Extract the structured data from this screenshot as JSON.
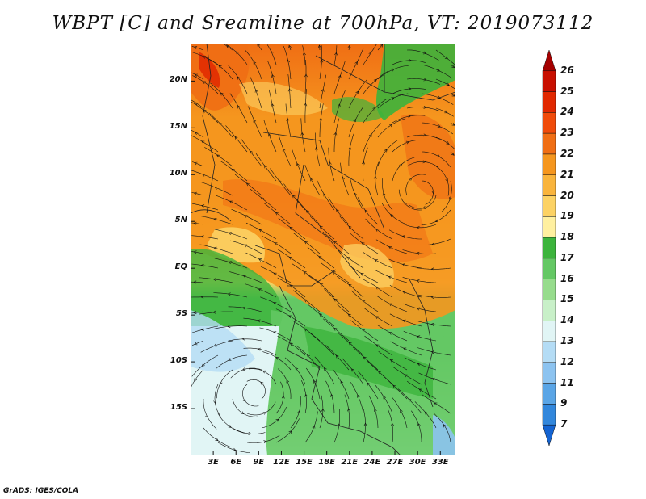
{
  "title": "WBPT [C] and Sreamline at 700hPa, VT: 2019073112",
  "footer": "GrADS: IGES/COLA",
  "map": {
    "lon_range": [
      0,
      35
    ],
    "lat_range": [
      -20,
      24
    ],
    "lat_ticks": [
      {
        "value": 20,
        "label": "20N"
      },
      {
        "value": 15,
        "label": "15N"
      },
      {
        "value": 10,
        "label": "10N"
      },
      {
        "value": 5,
        "label": "5N"
      },
      {
        "value": 0,
        "label": "EQ"
      },
      {
        "value": -5,
        "label": "5S"
      },
      {
        "value": -10,
        "label": "10S"
      },
      {
        "value": -15,
        "label": "15S"
      }
    ],
    "lon_ticks": [
      {
        "value": 3,
        "label": "3E"
      },
      {
        "value": 6,
        "label": "6E"
      },
      {
        "value": 9,
        "label": "9E"
      },
      {
        "value": 12,
        "label": "12E"
      },
      {
        "value": 15,
        "label": "15E"
      },
      {
        "value": 18,
        "label": "18E"
      },
      {
        "value": 21,
        "label": "21E"
      },
      {
        "value": 24,
        "label": "24E"
      },
      {
        "value": 27,
        "label": "27E"
      },
      {
        "value": 30,
        "label": "30E"
      },
      {
        "value": 33,
        "label": "33E"
      }
    ]
  },
  "colorbar": {
    "labels": [
      "26",
      "25",
      "24",
      "23",
      "22",
      "21",
      "20",
      "19",
      "18",
      "17",
      "16",
      "15",
      "14",
      "13",
      "12",
      "11",
      "9",
      "7"
    ],
    "colors": [
      "#a50000",
      "#c80f00",
      "#e12800",
      "#f04b0a",
      "#f06e14",
      "#f5961e",
      "#f9b43c",
      "#fcd264",
      "#fff0a0",
      "#3cb43c",
      "#64c864",
      "#96dc8c",
      "#c8f0c8",
      "#e1f5f5",
      "#b4dcf5",
      "#8cc3f0",
      "#5aa5e6",
      "#3287dc",
      "#1464d2"
    ]
  }
}
